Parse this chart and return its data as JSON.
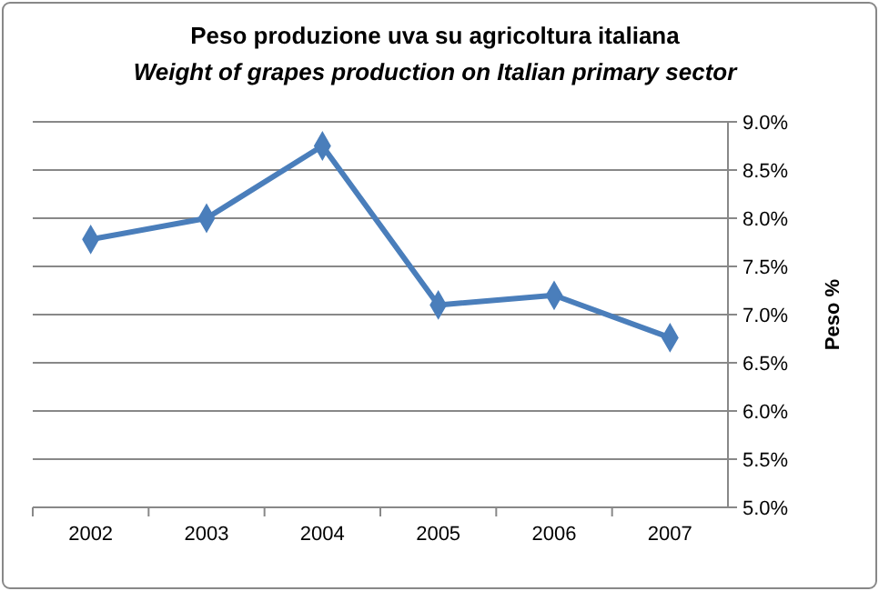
{
  "chart_data": {
    "type": "line",
    "title": "Peso produzione uva su agricoltura italiana",
    "subtitle": "Weight of grapes production on Italian primary sector",
    "ylabel": "Peso %",
    "categories": [
      "2002",
      "2003",
      "2004",
      "2005",
      "2006",
      "2007"
    ],
    "series": [
      {
        "color": "#4a7ebb",
        "values": [
          7.78,
          8.0,
          8.75,
          7.1,
          7.2,
          6.76
        ]
      }
    ],
    "ylim": [
      5.0,
      9.0
    ],
    "yticks": [
      {
        "value": 5.0,
        "label": "5.0%"
      },
      {
        "value": 5.5,
        "label": "5.5%"
      },
      {
        "value": 6.0,
        "label": "6.0%"
      },
      {
        "value": 6.5,
        "label": "6.5%"
      },
      {
        "value": 7.0,
        "label": "7.0%"
      },
      {
        "value": 7.5,
        "label": "7.5%"
      },
      {
        "value": 8.0,
        "label": "8.0%"
      },
      {
        "value": 8.5,
        "label": "8.5%"
      },
      {
        "value": 9.0,
        "label": "9.0%"
      }
    ],
    "grid": "y",
    "marker": "diamond"
  }
}
